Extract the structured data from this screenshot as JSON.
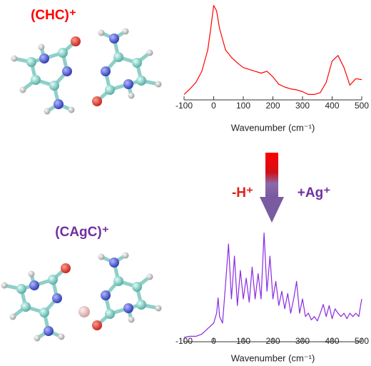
{
  "chart_data": [
    {
      "type": "line",
      "title": "(CHC)⁺",
      "title_color": "#ff0000",
      "x_label": "Wavenumber (cm⁻¹)",
      "x": [
        -100,
        -80,
        -60,
        -40,
        -20,
        -10,
        0,
        10,
        20,
        40,
        60,
        80,
        100,
        120,
        140,
        160,
        180,
        200,
        220,
        240,
        260,
        280,
        300,
        320,
        340,
        360,
        380,
        400,
        420,
        440,
        460,
        480,
        500
      ],
      "series": [
        {
          "color": "#ff0000",
          "values": [
            2,
            8,
            15,
            27,
            50,
            73,
            98,
            92,
            73,
            50,
            42,
            36,
            31,
            29,
            27,
            25,
            27,
            21,
            13,
            10,
            8,
            7,
            5,
            2,
            2,
            4,
            15,
            38,
            44,
            31,
            12,
            19,
            18
          ]
        }
      ],
      "xlim": [
        -100,
        500
      ],
      "xticks": [
        -100,
        0,
        100,
        200,
        300,
        400,
        500
      ],
      "ylim": [
        0,
        100
      ]
    },
    {
      "type": "line",
      "title": "(CAgC)⁺",
      "title_color": "#7030a0",
      "x_label": "Wavenumber (cm⁻¹)",
      "x": [
        -100,
        -80,
        -60,
        -40,
        -20,
        0,
        10,
        15,
        20,
        30,
        40,
        50,
        60,
        70,
        80,
        90,
        100,
        110,
        120,
        130,
        140,
        150,
        160,
        170,
        180,
        190,
        200,
        210,
        220,
        230,
        240,
        250,
        260,
        270,
        280,
        290,
        300,
        310,
        320,
        330,
        340,
        350,
        360,
        370,
        380,
        390,
        400,
        410,
        420,
        430,
        440,
        450,
        460,
        470,
        480,
        490,
        500
      ],
      "series": [
        {
          "color": "#8a2be2",
          "values": [
            2,
            3,
            3,
            5,
            10,
            15,
            24,
            38,
            21,
            15,
            50,
            87,
            37,
            76,
            31,
            63,
            37,
            56,
            34,
            66,
            37,
            60,
            37,
            97,
            44,
            76,
            37,
            53,
            31,
            44,
            28,
            42,
            24,
            37,
            53,
            24,
            37,
            21,
            24,
            18,
            21,
            17,
            24,
            32,
            21,
            31,
            19,
            28,
            24,
            21,
            24,
            19,
            24,
            21,
            24,
            21,
            37
          ]
        }
      ],
      "xlim": [
        -100,
        500
      ],
      "xticks": [
        -100,
        0,
        100,
        200,
        300,
        400,
        500
      ],
      "ylim": [
        0,
        100
      ]
    }
  ],
  "arrow_labels": [
    {
      "text": "-H⁺",
      "color": "#e0201b"
    },
    {
      "text": "+Ag⁺",
      "color": "#7030a0"
    }
  ]
}
